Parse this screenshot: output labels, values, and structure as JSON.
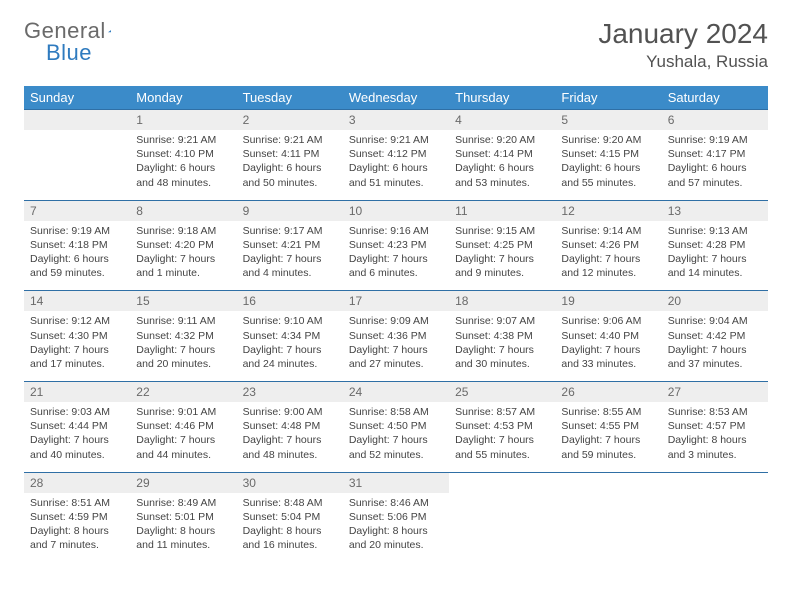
{
  "brand": {
    "part1": "General",
    "part2": "Blue"
  },
  "title": "January 2024",
  "location": "Yushala, Russia",
  "colors": {
    "header_bg": "#3b8bc9",
    "header_text": "#ffffff",
    "daynum_bg": "#eeeeee",
    "border_top": "#2f6fa5",
    "body_text": "#444444",
    "muted_text": "#6a6a6a",
    "brand_gray": "#6a6a6a",
    "brand_blue": "#2f7bbf"
  },
  "weekdays": [
    "Sunday",
    "Monday",
    "Tuesday",
    "Wednesday",
    "Thursday",
    "Friday",
    "Saturday"
  ],
  "weeks": [
    {
      "nums": [
        "",
        "1",
        "2",
        "3",
        "4",
        "5",
        "6"
      ],
      "cells": [
        "",
        "Sunrise: 9:21 AM\nSunset: 4:10 PM\nDaylight: 6 hours and 48 minutes.",
        "Sunrise: 9:21 AM\nSunset: 4:11 PM\nDaylight: 6 hours and 50 minutes.",
        "Sunrise: 9:21 AM\nSunset: 4:12 PM\nDaylight: 6 hours and 51 minutes.",
        "Sunrise: 9:20 AM\nSunset: 4:14 PM\nDaylight: 6 hours and 53 minutes.",
        "Sunrise: 9:20 AM\nSunset: 4:15 PM\nDaylight: 6 hours and 55 minutes.",
        "Sunrise: 9:19 AM\nSunset: 4:17 PM\nDaylight: 6 hours and 57 minutes."
      ]
    },
    {
      "nums": [
        "7",
        "8",
        "9",
        "10",
        "11",
        "12",
        "13"
      ],
      "cells": [
        "Sunrise: 9:19 AM\nSunset: 4:18 PM\nDaylight: 6 hours and 59 minutes.",
        "Sunrise: 9:18 AM\nSunset: 4:20 PM\nDaylight: 7 hours and 1 minute.",
        "Sunrise: 9:17 AM\nSunset: 4:21 PM\nDaylight: 7 hours and 4 minutes.",
        "Sunrise: 9:16 AM\nSunset: 4:23 PM\nDaylight: 7 hours and 6 minutes.",
        "Sunrise: 9:15 AM\nSunset: 4:25 PM\nDaylight: 7 hours and 9 minutes.",
        "Sunrise: 9:14 AM\nSunset: 4:26 PM\nDaylight: 7 hours and 12 minutes.",
        "Sunrise: 9:13 AM\nSunset: 4:28 PM\nDaylight: 7 hours and 14 minutes."
      ]
    },
    {
      "nums": [
        "14",
        "15",
        "16",
        "17",
        "18",
        "19",
        "20"
      ],
      "cells": [
        "Sunrise: 9:12 AM\nSunset: 4:30 PM\nDaylight: 7 hours and 17 minutes.",
        "Sunrise: 9:11 AM\nSunset: 4:32 PM\nDaylight: 7 hours and 20 minutes.",
        "Sunrise: 9:10 AM\nSunset: 4:34 PM\nDaylight: 7 hours and 24 minutes.",
        "Sunrise: 9:09 AM\nSunset: 4:36 PM\nDaylight: 7 hours and 27 minutes.",
        "Sunrise: 9:07 AM\nSunset: 4:38 PM\nDaylight: 7 hours and 30 minutes.",
        "Sunrise: 9:06 AM\nSunset: 4:40 PM\nDaylight: 7 hours and 33 minutes.",
        "Sunrise: 9:04 AM\nSunset: 4:42 PM\nDaylight: 7 hours and 37 minutes."
      ]
    },
    {
      "nums": [
        "21",
        "22",
        "23",
        "24",
        "25",
        "26",
        "27"
      ],
      "cells": [
        "Sunrise: 9:03 AM\nSunset: 4:44 PM\nDaylight: 7 hours and 40 minutes.",
        "Sunrise: 9:01 AM\nSunset: 4:46 PM\nDaylight: 7 hours and 44 minutes.",
        "Sunrise: 9:00 AM\nSunset: 4:48 PM\nDaylight: 7 hours and 48 minutes.",
        "Sunrise: 8:58 AM\nSunset: 4:50 PM\nDaylight: 7 hours and 52 minutes.",
        "Sunrise: 8:57 AM\nSunset: 4:53 PM\nDaylight: 7 hours and 55 minutes.",
        "Sunrise: 8:55 AM\nSunset: 4:55 PM\nDaylight: 7 hours and 59 minutes.",
        "Sunrise: 8:53 AM\nSunset: 4:57 PM\nDaylight: 8 hours and 3 minutes."
      ]
    },
    {
      "nums": [
        "28",
        "29",
        "30",
        "31",
        "",
        "",
        ""
      ],
      "cells": [
        "Sunrise: 8:51 AM\nSunset: 4:59 PM\nDaylight: 8 hours and 7 minutes.",
        "Sunrise: 8:49 AM\nSunset: 5:01 PM\nDaylight: 8 hours and 11 minutes.",
        "Sunrise: 8:48 AM\nSunset: 5:04 PM\nDaylight: 8 hours and 16 minutes.",
        "Sunrise: 8:46 AM\nSunset: 5:06 PM\nDaylight: 8 hours and 20 minutes.",
        "",
        "",
        ""
      ]
    }
  ]
}
